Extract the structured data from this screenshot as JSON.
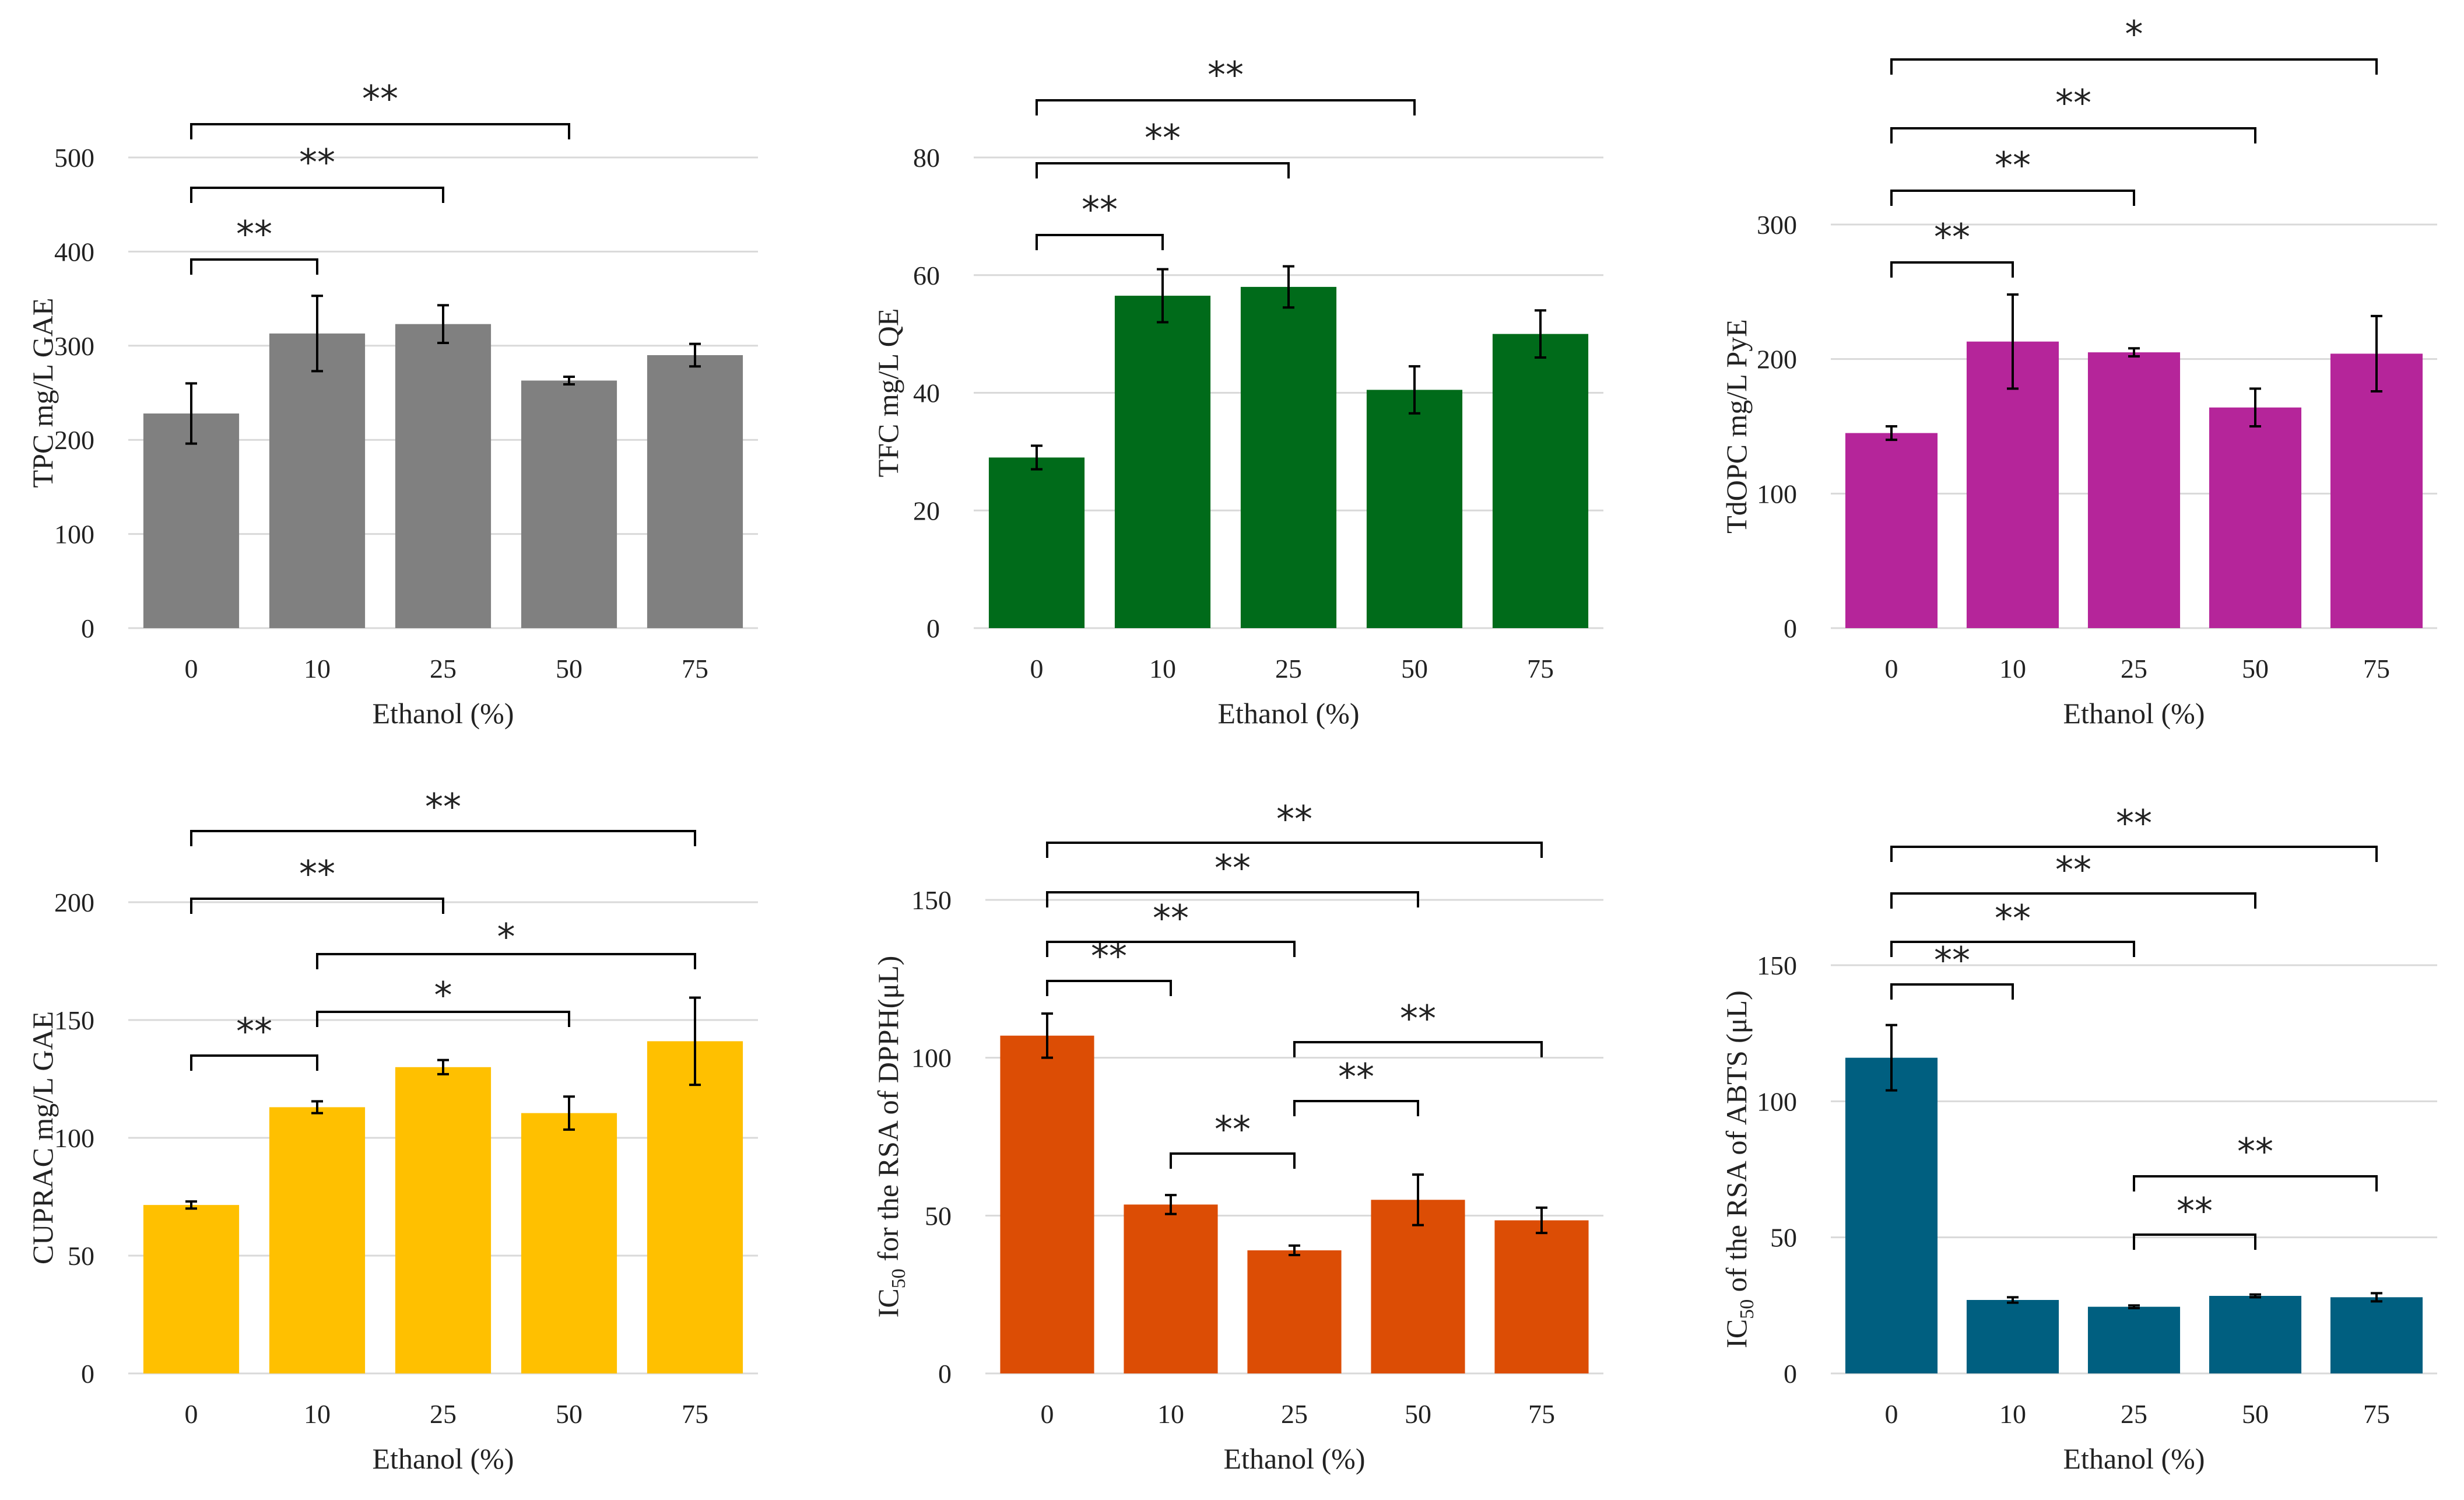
{
  "figure_xlabel": "Ethanol (%)",
  "chart_data": [
    {
      "id": "tpc",
      "type": "bar",
      "title": "",
      "ylabel": "TPC mg/L GAE",
      "xlabel": "Ethanol  (%)",
      "categories": [
        "0",
        "10",
        "25",
        "50",
        "75"
      ],
      "values": [
        228,
        313,
        323,
        263,
        290
      ],
      "errors": [
        32,
        40,
        20,
        4,
        12
      ],
      "ylim": [
        0,
        500
      ],
      "yticks": [
        0,
        100,
        200,
        300,
        400,
        500
      ],
      "color": "#808080",
      "significance": [
        {
          "from": "0",
          "to": "10",
          "label": "**"
        },
        {
          "from": "0",
          "to": "25",
          "label": "**"
        },
        {
          "from": "0",
          "to": "50",
          "label": "**"
        }
      ]
    },
    {
      "id": "tfc",
      "type": "bar",
      "title": "",
      "ylabel": "TFC mg/L QE",
      "xlabel": "Ethanol (%)",
      "categories": [
        "0",
        "10",
        "25",
        "50",
        "75"
      ],
      "values": [
        29,
        56.5,
        58,
        40.5,
        50
      ],
      "errors": [
        2,
        4.5,
        3.5,
        4,
        4
      ],
      "ylim": [
        0,
        80
      ],
      "yticks": [
        0,
        20,
        40,
        60,
        80
      ],
      "color": "#006b1a",
      "significance": [
        {
          "from": "0",
          "to": "10",
          "label": "**"
        },
        {
          "from": "0",
          "to": "25",
          "label": "**"
        },
        {
          "from": "0",
          "to": "50",
          "label": "**"
        }
      ]
    },
    {
      "id": "tdopc",
      "type": "bar",
      "title": "",
      "ylabel": "TdOPC mg/L PyE",
      "xlabel": "Ethanol (%)",
      "categories": [
        "0",
        "10",
        "25",
        "50",
        "75"
      ],
      "values": [
        145,
        213,
        205,
        164,
        204
      ],
      "errors": [
        5,
        35,
        3,
        14,
        28
      ],
      "ylim": [
        0,
        300
      ],
      "yticks": [
        0,
        100,
        200,
        300
      ],
      "color": "#b5259a",
      "significance": [
        {
          "from": "0",
          "to": "10",
          "label": "**"
        },
        {
          "from": "0",
          "to": "25",
          "label": "**"
        },
        {
          "from": "0",
          "to": "50",
          "label": "**"
        },
        {
          "from": "0",
          "to": "75",
          "label": "*"
        }
      ]
    },
    {
      "id": "cuprac",
      "type": "bar",
      "title": "",
      "ylabel": "CUPRAC mg/L GAE",
      "xlabel": "Ethanol (%)",
      "categories": [
        "0",
        "10",
        "25",
        "50",
        "75"
      ],
      "values": [
        71.5,
        113,
        130,
        110.5,
        141
      ],
      "errors": [
        1.5,
        2.5,
        3,
        7,
        18.5
      ],
      "ylim": [
        0,
        200
      ],
      "yticks": [
        0,
        50,
        100,
        150,
        200
      ],
      "color": "#ffc000",
      "significance": [
        {
          "from": "0",
          "to": "10",
          "label": "**"
        },
        {
          "from": "10",
          "to": "50",
          "label": "*"
        },
        {
          "from": "10",
          "to": "75",
          "label": "*"
        },
        {
          "from": "0",
          "to": "25",
          "label": "**"
        },
        {
          "from": "0",
          "to": "75",
          "label": "**"
        }
      ]
    },
    {
      "id": "dpph",
      "type": "bar",
      "title": "",
      "ylabel_main": "IC",
      "ylabel_sub": "50",
      "ylabel_rest": " for the RSA of DPPH(μL)",
      "xlabel": "Ethanol (%)",
      "categories": [
        "0",
        "10",
        "25",
        "50",
        "75"
      ],
      "values": [
        107,
        53.5,
        39,
        55,
        48.5
      ],
      "errors": [
        7,
        3,
        1.5,
        8,
        4
      ],
      "ylim": [
        0,
        150
      ],
      "yticks": [
        0,
        50,
        100,
        150
      ],
      "color": "#dc4d05",
      "significance": [
        {
          "from": "10",
          "to": "25",
          "label": "**"
        },
        {
          "from": "25",
          "to": "50",
          "label": "**"
        },
        {
          "from": "25",
          "to": "75",
          "label": "**"
        },
        {
          "from": "0",
          "to": "10",
          "label": "**"
        },
        {
          "from": "0",
          "to": "25",
          "label": "**"
        },
        {
          "from": "0",
          "to": "50",
          "label": "**"
        },
        {
          "from": "0",
          "to": "75",
          "label": "**"
        }
      ]
    },
    {
      "id": "abts",
      "type": "bar",
      "title": "",
      "ylabel_main": "IC",
      "ylabel_sub": "50",
      "ylabel_rest": " of the RSA of ABTS (μL)",
      "xlabel": "Ethanol (%)",
      "categories": [
        "0",
        "10",
        "25",
        "50",
        "75"
      ],
      "values": [
        116,
        27,
        24.5,
        28.5,
        28
      ],
      "errors": [
        12,
        1,
        0.5,
        0.5,
        1.5
      ],
      "ylim": [
        0,
        150
      ],
      "yticks": [
        0,
        50,
        100,
        150
      ],
      "color": "#005f80",
      "significance": [
        {
          "from": "25",
          "to": "50",
          "label": "**"
        },
        {
          "from": "25",
          "to": "75",
          "label": "**"
        },
        {
          "from": "0",
          "to": "10",
          "label": "**"
        },
        {
          "from": "0",
          "to": "25",
          "label": "**"
        },
        {
          "from": "0",
          "to": "50",
          "label": "**"
        },
        {
          "from": "0",
          "to": "75",
          "label": "**"
        }
      ]
    }
  ]
}
